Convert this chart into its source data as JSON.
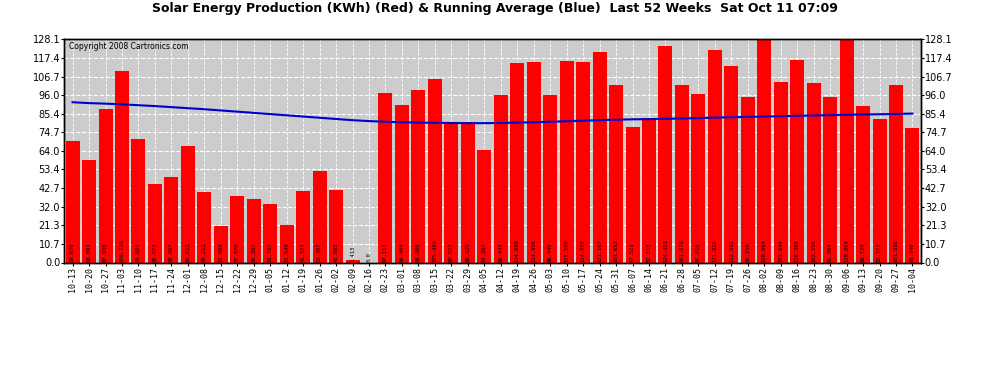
{
  "title": "Solar Energy Production (KWh) (Red) & Running Average (Blue)  Last 52 Weeks  Sat Oct 11 07:09",
  "copyright": "Copyright 2008 Cartronics.com",
  "bar_color": "#ff0000",
  "avg_line_color": "#0000cc",
  "bg_color": "#ffffff",
  "plot_bg_color": "#cccccc",
  "grid_color": "#ffffff",
  "categories": [
    "10-13",
    "10-20",
    "10-27",
    "11-03",
    "11-10",
    "11-17",
    "11-24",
    "12-01",
    "12-08",
    "12-15",
    "12-22",
    "12-29",
    "01-05",
    "01-12",
    "01-19",
    "01-26",
    "02-02",
    "02-09",
    "02-16",
    "02-23",
    "03-01",
    "03-08",
    "03-15",
    "03-22",
    "03-29",
    "04-05",
    "04-12",
    "04-19",
    "04-26",
    "05-03",
    "05-10",
    "05-17",
    "05-24",
    "05-31",
    "06-07",
    "06-14",
    "06-21",
    "06-28",
    "07-05",
    "07-12",
    "07-19",
    "07-26",
    "08-02",
    "08-09",
    "08-16",
    "08-23",
    "08-30",
    "09-06",
    "09-13",
    "09-20",
    "09-27",
    "10-04"
  ],
  "values": [
    69.67,
    58.891,
    87.93,
    109.73,
    70.684,
    45.073,
    48.867,
    66.612,
    40.212,
    21.009,
    37.97,
    36.387,
    33.787,
    21.549,
    41.321,
    52.307,
    41.885,
    1.413,
    0.0,
    97.113,
    90.404,
    98.966,
    105.493,
    80.023,
    80.925,
    64.387,
    96.443,
    114.699,
    114.956,
    96.445,
    115.566,
    114.958,
    121.107,
    101.652,
    77.521,
    82.818,
    124.453,
    101.878,
    97.016,
    121.826,
    112.992,
    95.156,
    128.064,
    103.644,
    116.365,
    103.156,
    95.064,
    128.064,
    89.729,
    82.373,
    101.886,
    76.94
  ],
  "running_avg": [
    92.0,
    91.5,
    91.2,
    90.8,
    90.3,
    89.8,
    89.2,
    88.6,
    88.0,
    87.3,
    86.6,
    85.9,
    85.2,
    84.5,
    83.8,
    83.1,
    82.4,
    81.7,
    81.2,
    80.8,
    80.5,
    80.3,
    80.2,
    80.1,
    80.0,
    80.0,
    80.1,
    80.3,
    80.5,
    80.8,
    81.1,
    81.4,
    81.7,
    82.0,
    82.2,
    82.3,
    82.5,
    82.7,
    82.9,
    83.2,
    83.4,
    83.6,
    83.8,
    84.0,
    84.2,
    84.4,
    84.6,
    84.8,
    85.0,
    85.1,
    85.3,
    85.5
  ],
  "yticks": [
    0.0,
    10.7,
    21.3,
    32.0,
    42.7,
    53.4,
    64.0,
    74.7,
    85.4,
    96.0,
    106.7,
    117.4,
    128.1
  ],
  "ymax": 128.1,
  "ymin": 0
}
